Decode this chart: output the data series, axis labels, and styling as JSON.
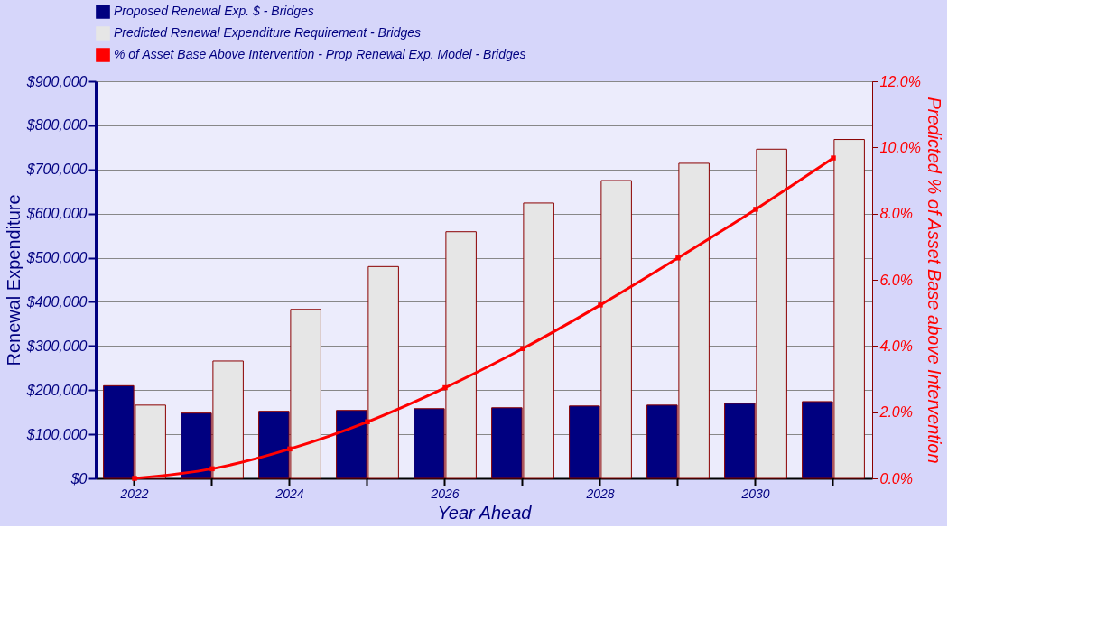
{
  "chart_data": {
    "type": "bar",
    "xlabel": "Year Ahead",
    "ylabel": "Renewal Expenditure",
    "y2label": "Predicted % of Asset Base above Intervention",
    "categories": [
      "2022",
      null,
      "2024",
      null,
      "2026",
      null,
      "2028",
      null,
      "2030",
      null
    ],
    "series": [
      {
        "name": "Proposed Renewal Exp. $ -  Bridges",
        "color": "#000080",
        "values": [
          210000,
          148000,
          152000,
          154000,
          158000,
          160000,
          164000,
          166000,
          170000,
          174000
        ]
      },
      {
        "name": "Predicted Renewal Expenditure Requirement -  Bridges",
        "color": "#e6e6e6",
        "values": [
          166000,
          266000,
          383000,
          480000,
          559000,
          624000,
          675000,
          714000,
          746000,
          768000
        ]
      },
      {
        "name": "% of Asset Base Above Intervention - Prop Renewal Exp. Model -  Bridges",
        "color": "#ff0000",
        "type": "line",
        "axis": "y2",
        "marker": "square",
        "values": [
          0.0,
          0.29,
          0.89,
          1.71,
          2.74,
          3.92,
          5.24,
          6.66,
          8.13,
          9.68
        ]
      }
    ],
    "ylim": [
      0,
      900000
    ],
    "yticks": [
      {
        "value": 0,
        "label": "$0"
      },
      {
        "value": 100000,
        "label": "$100,000"
      },
      {
        "value": 200000,
        "label": "$200,000"
      },
      {
        "value": 300000,
        "label": "$300,000"
      },
      {
        "value": 400000,
        "label": "$400,000"
      },
      {
        "value": 500000,
        "label": "$500,000"
      },
      {
        "value": 600000,
        "label": "$600,000"
      },
      {
        "value": 700000,
        "label": "$700,000"
      },
      {
        "value": 800000,
        "label": "$800,000"
      },
      {
        "value": 900000,
        "label": "$900,000"
      }
    ],
    "y2lim": [
      0,
      12
    ],
    "y2ticks": [
      {
        "value": 0,
        "label": "0.0%"
      },
      {
        "value": 2,
        "label": "2.0%"
      },
      {
        "value": 4,
        "label": "4.0%"
      },
      {
        "value": 6,
        "label": "6.0%"
      },
      {
        "value": 8,
        "label": "8.0%"
      },
      {
        "value": 10,
        "label": "10.0%"
      },
      {
        "value": 12,
        "label": "12.0%"
      }
    ],
    "grid": "y",
    "legend": "top"
  }
}
